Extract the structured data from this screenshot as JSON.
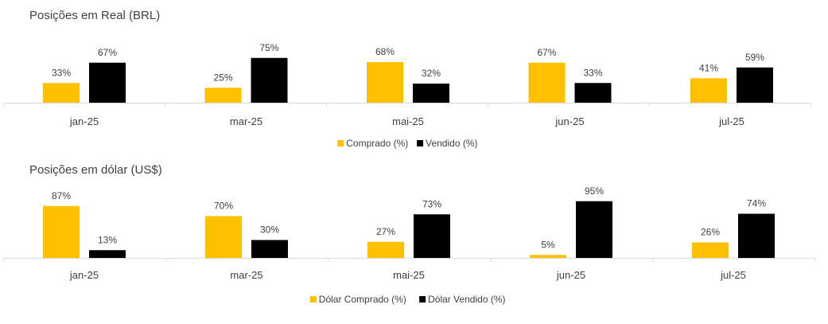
{
  "chart_data": [
    {
      "type": "bar",
      "title": "Posições em Real (BRL)",
      "categories": [
        "jan-25",
        "mar-25",
        "mai-25",
        "jun-25",
        "jul-25"
      ],
      "series": [
        {
          "name": "Comprado (%)",
          "color": "#FFC000",
          "values": [
            33,
            25,
            68,
            67,
            41
          ],
          "labels": [
            "33%",
            "25%",
            "68%",
            "67%",
            "41%"
          ]
        },
        {
          "name": "Vendido (%)",
          "color": "#000000",
          "values": [
            67,
            75,
            32,
            33,
            59
          ],
          "labels": [
            "67%",
            "75%",
            "32%",
            "33%",
            "59%"
          ]
        }
      ],
      "ylim": [
        0,
        100
      ],
      "grid": false,
      "legend_position": "bottom"
    },
    {
      "type": "bar",
      "title": "Posições em dólar (US$)",
      "categories": [
        "jan-25",
        "mar-25",
        "mai-25",
        "jun-25",
        "jul-25"
      ],
      "series": [
        {
          "name": "Dólar Comprado (%)",
          "color": "#FFC000",
          "values": [
            87,
            70,
            27,
            5,
            26
          ],
          "labels": [
            "87%",
            "70%",
            "27%",
            "5%",
            "26%"
          ]
        },
        {
          "name": "Dólar Vendido (%)",
          "color": "#000000",
          "values": [
            13,
            30,
            73,
            95,
            74
          ],
          "labels": [
            "13%",
            "30%",
            "73%",
            "95%",
            "74%"
          ]
        }
      ],
      "ylim": [
        0,
        100
      ],
      "grid": false,
      "legend_position": "bottom"
    }
  ]
}
